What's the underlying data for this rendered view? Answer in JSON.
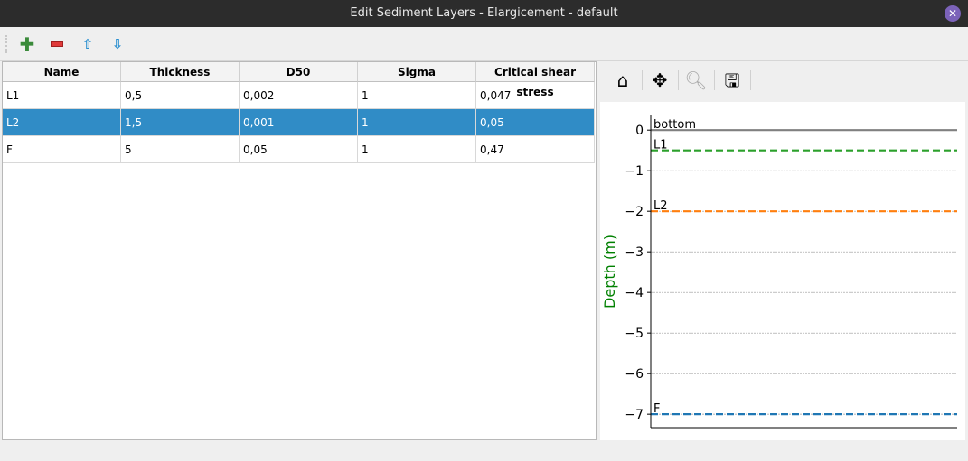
{
  "window": {
    "title": "Edit Sediment Layers - Elargicement - default",
    "close_icon": "close-icon"
  },
  "toolbar": {
    "add": "plus-icon",
    "remove": "minus-icon",
    "up": "arrow-up-icon",
    "down": "arrow-down-icon"
  },
  "table": {
    "columns": [
      "Name",
      "Thickness",
      "D50",
      "Sigma",
      "Critical shear stress"
    ],
    "rows": [
      [
        "L1",
        "0,5",
        "0,002",
        "1",
        "0,047"
      ],
      [
        "L2",
        "1,5",
        "0,001",
        "1",
        "0,05"
      ],
      [
        "F",
        "5",
        "0,05",
        "1",
        "0,47"
      ]
    ],
    "selected_row": 1
  },
  "plot_toolbar": {
    "home": "home-icon",
    "pan": "move-icon",
    "zoom": "magnifier-icon",
    "save": "save-icon"
  },
  "chart_data": {
    "type": "line",
    "ylabel": "Depth (m)",
    "ylim": [
      -7.33,
      0.36
    ],
    "yticks": [
      0,
      -1,
      -2,
      -3,
      -4,
      -5,
      -6,
      -7
    ],
    "ytick_labels": [
      "0",
      "−1",
      "−2",
      "−3",
      "−4",
      "−5",
      "−6",
      "−7"
    ],
    "grid": true,
    "lines": [
      {
        "name": "bottom",
        "y": 0,
        "color": "#808080",
        "style": "solid"
      },
      {
        "name": "L1",
        "y": -0.5,
        "color": "#2ca02c",
        "style": "dashed"
      },
      {
        "name": "L2",
        "y": -2,
        "color": "#ff7f0e",
        "style": "dashed"
      },
      {
        "name": "F",
        "y": -7,
        "color": "#1f77b4",
        "style": "dashed"
      }
    ],
    "ylabel_color": "#008000"
  }
}
